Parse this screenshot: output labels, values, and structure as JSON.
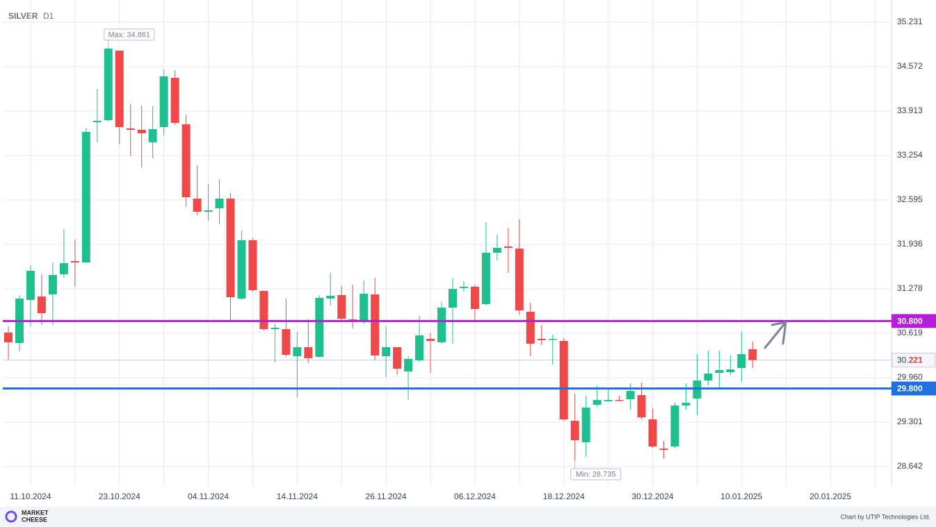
{
  "chart_data": {
    "type": "candlestick",
    "title": "SILVER",
    "subtitle": "D1",
    "categories": [
      null,
      null,
      "11.10.2024",
      null,
      null,
      null,
      null,
      null,
      null,
      null,
      "23.10.2024",
      null,
      null,
      null,
      null,
      null,
      null,
      null,
      "04.11.2024",
      null,
      null,
      null,
      null,
      null,
      null,
      null,
      "14.11.2024",
      null,
      null,
      null,
      null,
      null,
      null,
      null,
      "26.11.2024",
      null,
      null,
      null,
      null,
      null,
      null,
      null,
      "06.12.2024",
      null,
      null,
      null,
      null,
      null,
      null,
      null,
      "18.12.2024",
      null,
      null,
      null,
      null,
      null,
      null,
      null,
      "30.12.2024",
      null,
      null,
      null,
      null,
      null,
      null,
      null,
      "10.01.2025",
      null,
      null,
      null,
      null,
      null,
      null,
      null,
      "20.01.2025",
      null,
      null,
      null,
      null,
      null
    ],
    "open": [
      30.629,
      30.474,
      31.113,
      31.164,
      31.195,
      31.494,
      31.689,
      31.669,
      33.748,
      33.779,
      34.809,
      33.656,
      33.635,
      33.45,
      33.676,
      34.407,
      33.717,
      32.616,
      32.42,
      32.472,
      32.616,
      31.133,
      31.998,
      31.247,
      30.68,
      30.68,
      30.279,
      30.413,
      30.268,
      31.133,
      31.185,
      30.825,
      30.794,
      31.195,
      30.279,
      30.413,
      30.052,
      30.217,
      30.536,
      30.485,
      30.999,
      31.288,
      31.308,
      31.051,
      31.813,
      31.906,
      31.875,
      30.938,
      30.536,
      30.526,
      30.505,
      29.321,
      29.002,
      29.558,
      29.61,
      29.63,
      29.641,
      29.702,
      29.342,
      28.909,
      28.94,
      29.547,
      29.651,
      29.918,
      30.032,
      30.042,
      30.104,
      30.382,
      null,
      null,
      null,
      null,
      null,
      null,
      null,
      null,
      null,
      null,
      null,
      null
    ],
    "high": [
      30.722,
      31.185,
      31.627,
      31.494,
      31.669,
      32.163,
      32.008,
      33.666,
      34.243,
      34.861,
      34.809,
      34.016,
      33.996,
      33.985,
      34.531,
      34.52,
      33.862,
      33.11,
      32.832,
      32.904,
      32.698,
      32.142,
      32.029,
      31.247,
      30.763,
      31.133,
      30.639,
      30.825,
      31.185,
      31.514,
      31.318,
      31.339,
      31.401,
      31.442,
      30.722,
      30.413,
      30.279,
      30.876,
      30.619,
      31.082,
      31.442,
      31.391,
      31.339,
      32.266,
      32.081,
      32.184,
      32.307,
      31.072,
      30.742,
      30.598,
      30.546,
      29.723,
      29.692,
      29.846,
      29.795,
      29.692,
      29.877,
      29.888,
      29.506,
      29.022,
      29.588,
      29.877,
      30.31,
      30.361,
      30.361,
      30.289,
      30.639,
      30.495,
      null,
      null,
      null,
      null,
      null,
      null,
      null,
      null,
      null,
      null,
      null,
      null
    ],
    "low": [
      30.227,
      30.351,
      30.722,
      30.742,
      30.742,
      31.442,
      31.308,
      31.669,
      33.45,
      33.759,
      33.419,
      33.244,
      33.079,
      33.213,
      33.553,
      33.707,
      32.492,
      32.369,
      32.286,
      32.235,
      30.804,
      31.113,
      31.236,
      30.66,
      30.186,
      30.268,
      29.671,
      30.176,
      30.258,
      31.03,
      30.814,
      30.69,
      30.752,
      30.217,
      29.97,
      30.001,
      29.63,
      30.196,
      30.032,
      30.464,
      30.464,
      31.236,
      30.804,
      31.03,
      31.7,
      31.514,
      30.897,
      30.279,
      30.443,
      30.155,
      29.321,
      28.735,
      28.786,
      29.527,
      29.61,
      29.61,
      29.486,
      29.342,
      28.919,
      28.765,
      28.919,
      29.486,
      29.404,
      29.846,
      29.815,
      30.001,
      29.898,
      30.104,
      null,
      null,
      null,
      null,
      null,
      null,
      null,
      null,
      null,
      null,
      null,
      null
    ],
    "close": [
      30.485,
      31.133,
      31.545,
      30.917,
      31.483,
      31.658,
      31.669,
      33.604,
      33.769,
      34.84,
      33.676,
      33.635,
      33.584,
      33.645,
      34.428,
      33.738,
      32.636,
      32.42,
      32.441,
      32.616,
      31.154,
      31.998,
      31.257,
      30.68,
      30.701,
      30.299,
      30.413,
      30.248,
      31.144,
      31.175,
      30.835,
      30.804,
      31.205,
      30.289,
      30.413,
      30.093,
      30.238,
      30.588,
      30.505,
      30.999,
      31.277,
      31.308,
      30.979,
      31.813,
      31.885,
      31.885,
      30.958,
      30.464,
      30.516,
      30.536,
      29.342,
      29.033,
      29.517,
      29.63,
      29.63,
      29.62,
      29.764,
      29.373,
      28.94,
      28.889,
      29.547,
      29.588,
      29.918,
      30.021,
      30.073,
      30.083,
      30.31,
      30.221,
      null,
      null,
      null,
      null,
      null,
      null,
      null,
      null,
      null,
      null,
      null,
      null
    ],
    "up_color": "#1fbf8f",
    "down_color": "#ef4848",
    "ylim": [
      28.354,
      35.56
    ],
    "yticks": [
      35.231,
      34.572,
      33.913,
      33.254,
      32.595,
      31.936,
      31.278,
      30.619,
      {
        "value": 29.96,
        "label": "29.960"
      },
      29.301,
      28.642
    ],
    "grid": true,
    "levels": [
      {
        "value": 30.8,
        "label": "30.800",
        "color": "#b21fd6"
      },
      {
        "value": 29.8,
        "label": "29.800",
        "color": "#1f6fdf"
      }
    ],
    "current_price": {
      "value": 30.221,
      "label_main": "30.",
      "label_accent": "221"
    },
    "annotations": [
      {
        "label": "Max: 34.861",
        "value": 34.861
      },
      {
        "label": "Min: 28.735",
        "value": 28.735
      }
    ],
    "footer": {
      "logo": [
        "MARKET",
        "CHEESE"
      ],
      "credit": "Chart by UTIP Technologies Ltd."
    }
  }
}
